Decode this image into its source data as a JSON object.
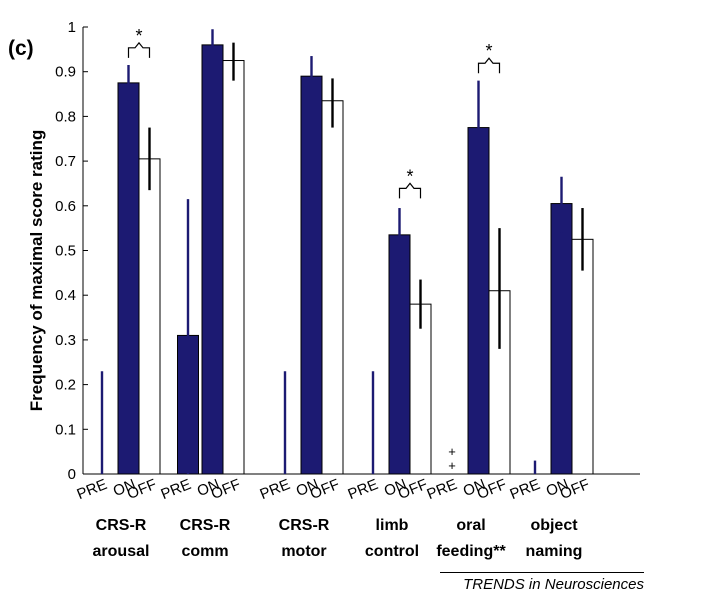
{
  "panel_label": "(c)",
  "credit": "TRENDS in Neurosciences",
  "colors": {
    "on": "#1c1a72",
    "off": "#ffffff",
    "pre": "#1c1a72",
    "axis": "#000000"
  },
  "chart_data": {
    "type": "bar",
    "ylabel": "Frequency of maximal score rating",
    "ylim": [
      0,
      1
    ],
    "yticks": [
      "0",
      "0.1",
      "0.2",
      "0.3",
      "0.4",
      "0.5",
      "0.6",
      "0.7",
      "0.8",
      "0.9",
      "1"
    ],
    "condition_labels": [
      "PRE",
      "ON",
      "OFF"
    ],
    "groups": [
      {
        "label_line1": "CRS-R",
        "label_line2": "arousal",
        "pre": 0.0,
        "pre_err": [
          0.0,
          0.23
        ],
        "on": 0.875,
        "on_err": [
          0.835,
          0.915
        ],
        "off": 0.705,
        "off_err": [
          0.635,
          0.775
        ],
        "sig": "*"
      },
      {
        "label_line1": "CRS-R",
        "label_line2": "comm",
        "pre": 0.31,
        "pre_err": [
          0.0,
          0.615
        ],
        "on": 0.96,
        "on_err": [
          0.91,
          0.995
        ],
        "off": 0.925,
        "off_err": [
          0.88,
          0.965
        ],
        "sig": ""
      },
      {
        "label_line1": "CRS-R",
        "label_line2": "motor",
        "pre": 0.0,
        "pre_err": [
          0.0,
          0.23
        ],
        "on": 0.89,
        "on_err": [
          0.845,
          0.935
        ],
        "off": 0.835,
        "off_err": [
          0.775,
          0.885
        ],
        "sig": ""
      },
      {
        "label_line1": "limb",
        "label_line2": "control",
        "pre": 0.0,
        "pre_err": [
          0.0,
          0.23
        ],
        "on": 0.535,
        "on_err": [
          0.475,
          0.595
        ],
        "off": 0.38,
        "off_err": [
          0.325,
          0.435
        ],
        "sig": "*"
      },
      {
        "label_line1": "oral",
        "label_line2": "feeding**",
        "pre": 0.0,
        "pre_err": null,
        "on": 0.775,
        "on_err": [
          0.67,
          0.88
        ],
        "off": 0.41,
        "off_err": [
          0.28,
          0.55
        ],
        "sig": "*",
        "pre_marker": "+"
      },
      {
        "label_line1": "object",
        "label_line2": "naming",
        "pre": 0.0,
        "pre_err": [
          0.0,
          0.03
        ],
        "on": 0.605,
        "on_err": [
          0.54,
          0.665
        ],
        "off": 0.525,
        "off_err": [
          0.455,
          0.595
        ],
        "sig": ""
      }
    ]
  }
}
